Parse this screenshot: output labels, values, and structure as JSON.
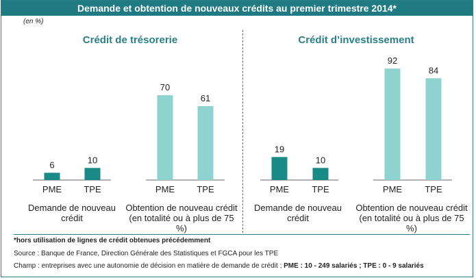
{
  "title": "Demande et obtention de nouveaux crédits au premier trimestre 2014*",
  "unit_note": "(en %)",
  "panels": [
    {
      "title": "Crédit de trésorerie"
    },
    {
      "title": "Crédit d’investissement"
    }
  ],
  "groups": [
    {
      "label": "Demande de nouveau crédit"
    },
    {
      "label": "Obtention de nouveau crédit (en totalité ou à plus de 75 %)"
    },
    {
      "label": "Demande de nouveau crédit"
    },
    {
      "label": "Obtention de nouveau crédit (en totalité ou à plus de 75 %)"
    }
  ],
  "footnotes": {
    "note": "*hors utilisation de lignes de crédit obtenues précédemment",
    "source": "Source : Banque de France, Direction Générale des Statistiques et FGCA pour les TPE",
    "champ_prefix": "Champ : entreprises avec une autonomie de décision en matière de demande de crédit ; ",
    "champ_bold": "PME : 10 - 249 salariés ; TPE : 0 - 9 salariés"
  },
  "colors": {
    "title_bg": "#1f7a82",
    "demande": "#1a8a86",
    "obtention": "#8fd3d0",
    "panel_title": "#2a7f86"
  },
  "chart_data": {
    "type": "bar",
    "categories": [
      "PME",
      "TPE"
    ],
    "ylim": [
      0,
      100
    ],
    "panels": [
      {
        "title": "Crédit de trésorerie",
        "groups": [
          {
            "label": "Demande de nouveau crédit",
            "values": [
              6,
              10
            ]
          },
          {
            "label": "Obtention de nouveau crédit (en totalité ou à plus de 75 %)",
            "values": [
              70,
              61
            ]
          }
        ]
      },
      {
        "title": "Crédit d’investissement",
        "groups": [
          {
            "label": "Demande de nouveau crédit",
            "values": [
              19,
              10
            ]
          },
          {
            "label": "Obtention de nouveau crédit (en totalité ou à plus de 75 %)",
            "values": [
              92,
              84
            ]
          }
        ]
      }
    ]
  }
}
